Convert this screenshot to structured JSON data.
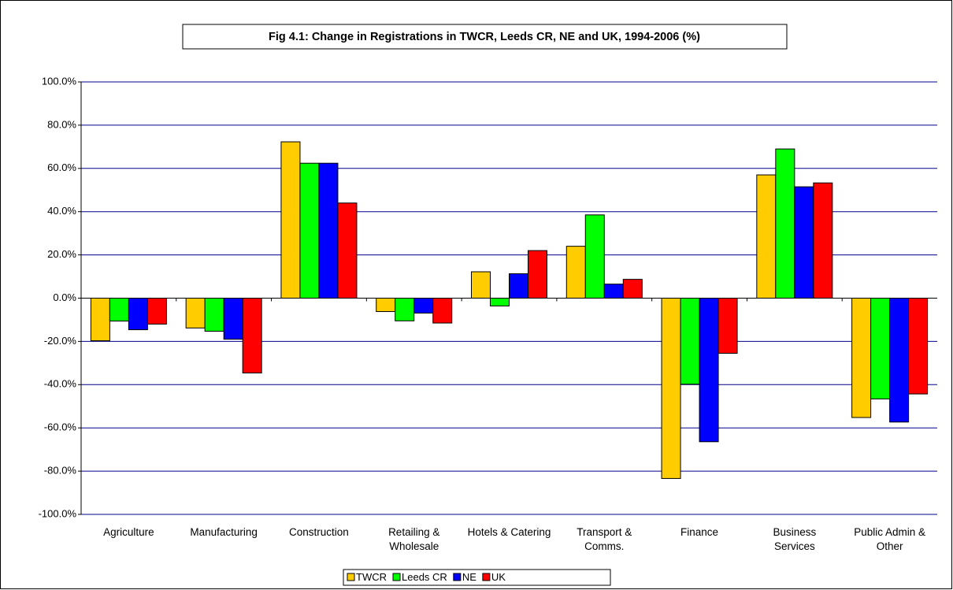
{
  "chart_data": {
    "type": "bar",
    "title": "Fig 4.1: Change in Registrations in TWCR, Leeds CR, NE and UK, 1994-2006 (%)",
    "categories": [
      "Agriculture",
      "Manufacturing",
      "Construction",
      "Retailing & Wholesale",
      "Hotels & Catering",
      "Transport & Comms.",
      "Finance",
      "Business Services",
      "Public Admin & Other"
    ],
    "series": [
      {
        "name": "TWCR",
        "color": "#ffcc00",
        "values": [
          -19.7,
          -13.8,
          72.3,
          -6.2,
          12.2,
          24,
          -83.4,
          57,
          -55.2
        ]
      },
      {
        "name": "Leeds CR",
        "color": "#00ff00",
        "values": [
          -10.6,
          -15.3,
          62.4,
          -10.5,
          -3.6,
          38.5,
          -39.8,
          69,
          -46.6
        ]
      },
      {
        "name": "NE",
        "color": "#0000ff",
        "values": [
          -14.6,
          -19,
          62.4,
          -6.9,
          11.3,
          6.5,
          -66.4,
          51.5,
          -57.3
        ]
      },
      {
        "name": "UK",
        "color": "#ff0000",
        "values": [
          -12,
          -34.6,
          44,
          -11.5,
          22,
          8.7,
          -25.5,
          53.3,
          -44.3
        ]
      }
    ],
    "ylim": [
      -100,
      100
    ],
    "yticks": [
      {
        "value": -100,
        "label": "-100.0%"
      },
      {
        "value": -80,
        "label": "-80.0%"
      },
      {
        "value": -60,
        "label": "-60.0%"
      },
      {
        "value": -40,
        "label": "-40.0%"
      },
      {
        "value": -20,
        "label": "-20.0%"
      },
      {
        "value": 0,
        "label": "0.0%"
      },
      {
        "value": 20,
        "label": "20.0%"
      },
      {
        "value": 40,
        "label": "40.0%"
      },
      {
        "value": 60,
        "label": "60.0%"
      },
      {
        "value": 80,
        "label": "80.0%"
      },
      {
        "value": 100,
        "label": "100.0%"
      }
    ],
    "grid": true,
    "grid_color": "#00008b",
    "legend": "bottom"
  }
}
